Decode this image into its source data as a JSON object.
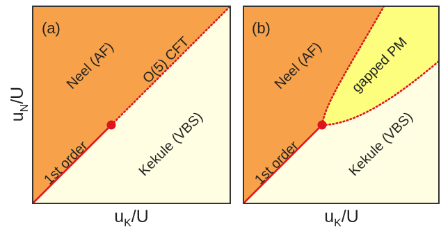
{
  "y_axis_label": {
    "base": "u",
    "sub": "N",
    "rest": "/U"
  },
  "panels": [
    {
      "tag": "(a)",
      "x_axis_label": {
        "base": "u",
        "sub": "K",
        "rest": "/U"
      },
      "regions": {
        "upper": "Neel (AF)",
        "lower": "Kekule (VBS)"
      },
      "boundary_labels": {
        "solid": "1st order",
        "dotted": "O(5) CFT"
      },
      "colors": {
        "upper": "#F7A24A",
        "lower": "#FFFDE2",
        "boundary": "#E0141C"
      }
    },
    {
      "tag": "(b)",
      "x_axis_label": {
        "base": "u",
        "sub": "K",
        "rest": "/U"
      },
      "regions": {
        "upper": "Neel (AF)",
        "middle": "gapped PM",
        "lower": "Kekule (VBS)"
      },
      "boundary_labels": {
        "solid": "1st order"
      },
      "colors": {
        "upper": "#F7A24A",
        "middle": "#FDFD7E",
        "lower": "#FFFDE2",
        "boundary": "#E0141C"
      }
    }
  ]
}
